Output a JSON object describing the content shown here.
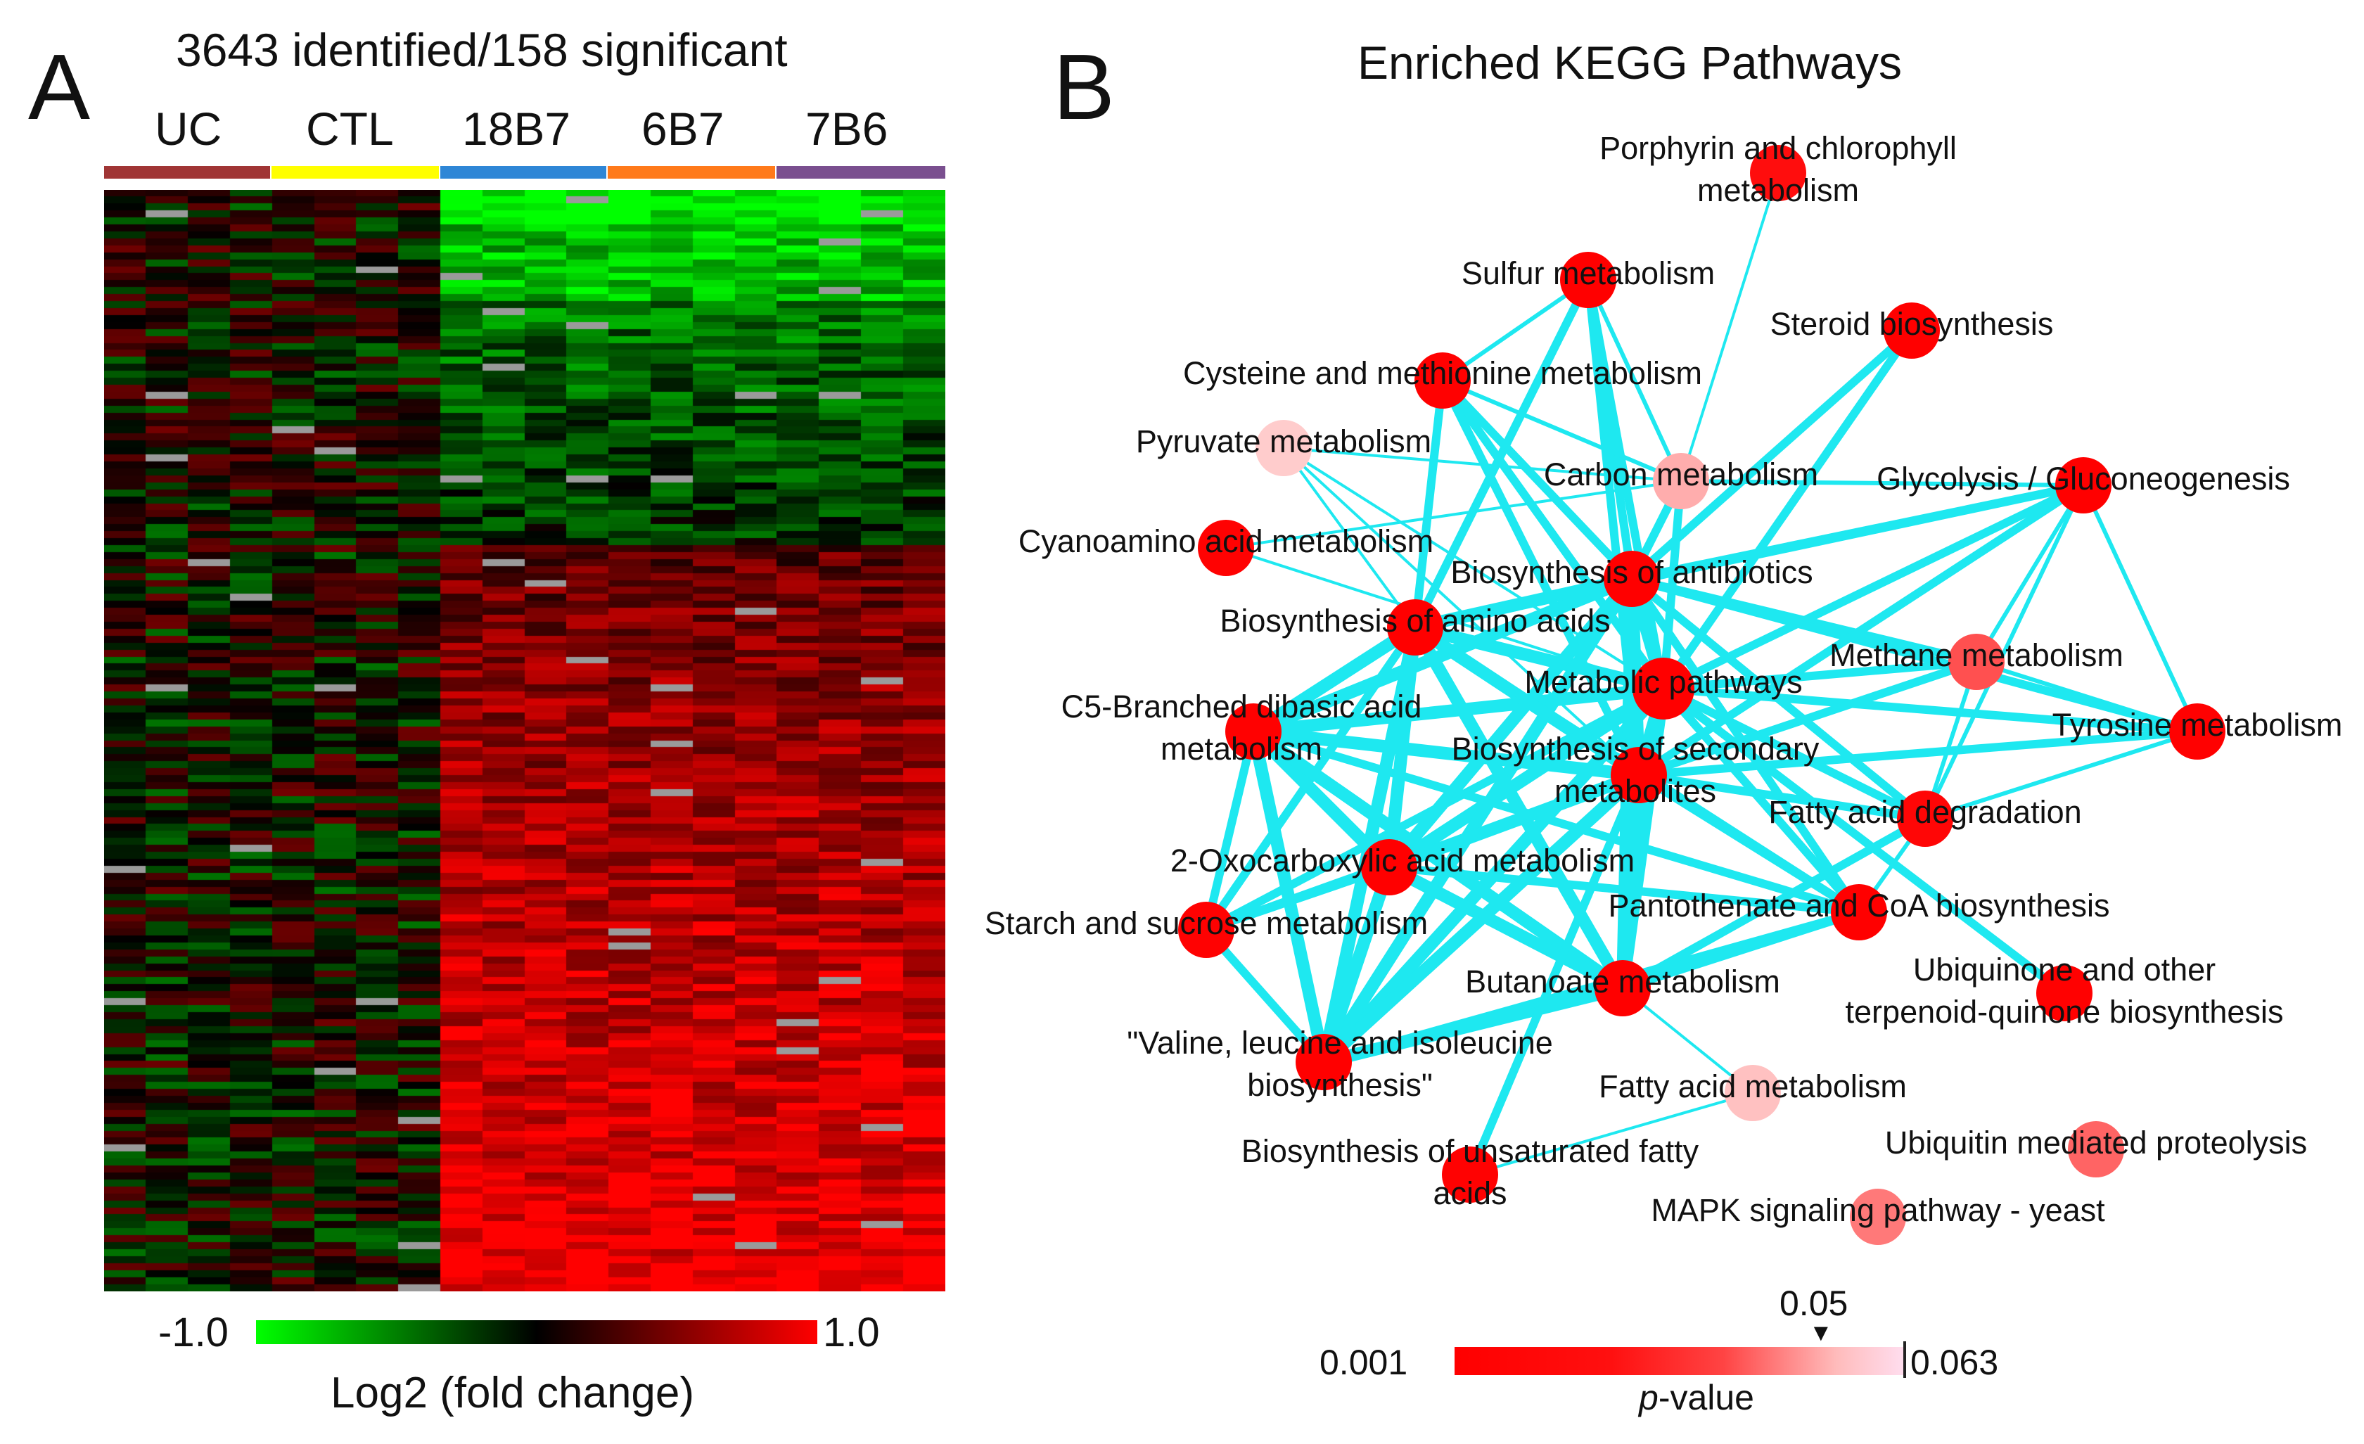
{
  "panel_a": {
    "letter": "A",
    "summary": "3643 identified/158  significant",
    "groups": [
      {
        "label": "UC",
        "color": "#a03535"
      },
      {
        "label": "CTL",
        "color": "#ffff00"
      },
      {
        "label": "18B7",
        "color": "#2e86d6"
      },
      {
        "label": "6B7",
        "color": "#ff7a1a"
      },
      {
        "label": "7B6",
        "color": "#7a4f8f"
      }
    ],
    "colorbar": {
      "min_label": "-1.0",
      "max_label": "1.0",
      "title": "Log2 (fold change)"
    }
  },
  "panel_b": {
    "letter": "B",
    "title": "Enriched  KEGG Pathways",
    "colorbar": {
      "min_label": "0.001",
      "max_label": "0.063",
      "marker_label": "0.05",
      "title_italic": "p",
      "title_rest": "-value"
    },
    "node_color": "#ff0000",
    "edge_color": "#1ee8f0",
    "nodes": [
      {
        "id": "porphyrin",
        "lines": [
          "Porphyrin and chlorophyll",
          "metabolism"
        ],
        "pvalue": 0.012
      },
      {
        "id": "sulfur",
        "lines": [
          "Sulfur metabolism"
        ],
        "pvalue": 0.002
      },
      {
        "id": "steroid",
        "lines": [
          "Steroid biosynthesis"
        ],
        "pvalue": 0.002
      },
      {
        "id": "cysteine",
        "lines": [
          "Cysteine and methionine metabolism"
        ],
        "pvalue": 0.003
      },
      {
        "id": "pyruvate",
        "lines": [
          "Pyruvate metabolism"
        ],
        "pvalue": 0.062
      },
      {
        "id": "carbon",
        "lines": [
          "Carbon metabolism"
        ],
        "pvalue": 0.056
      },
      {
        "id": "glycolysis",
        "lines": [
          "Glycolysis / Gluconeogenesis"
        ],
        "pvalue": 0.002
      },
      {
        "id": "cyanoamino",
        "lines": [
          "Cyanoamino acid metabolism"
        ],
        "pvalue": 0.004
      },
      {
        "id": "antibiotics",
        "lines": [
          "Biosynthesis of antibiotics"
        ],
        "pvalue": 0.001
      },
      {
        "id": "aminoacids",
        "lines": [
          "Biosynthesis of amino acids"
        ],
        "pvalue": 0.002
      },
      {
        "id": "methane",
        "lines": [
          "Methane metabolism"
        ],
        "pvalue": 0.035
      },
      {
        "id": "metabolic",
        "lines": [
          "Metabolic pathways"
        ],
        "pvalue": 0.001
      },
      {
        "id": "c5",
        "lines": [
          "C5-Branched dibasic acid",
          "metabolism"
        ],
        "pvalue": 0.003
      },
      {
        "id": "tyrosine",
        "lines": [
          "Tyrosine metabolism"
        ],
        "pvalue": 0.003
      },
      {
        "id": "secondary",
        "lines": [
          "Biosynthesis of secondary",
          "metabolites"
        ],
        "pvalue": 0.001
      },
      {
        "id": "fattydeg",
        "lines": [
          "Fatty acid degradation"
        ],
        "pvalue": 0.008
      },
      {
        "id": "oxocarb",
        "lines": [
          "2-Oxocarboxylic acid metabolism"
        ],
        "pvalue": 0.002
      },
      {
        "id": "pantothenate",
        "lines": [
          "Pantothenate and CoA biosynthesis"
        ],
        "pvalue": 0.002
      },
      {
        "id": "starch",
        "lines": [
          "Starch and sucrose metabolism"
        ],
        "pvalue": 0.004
      },
      {
        "id": "ubiquinone",
        "lines": [
          "Ubiquinone and other",
          "terpenoid-quinone biosynthesis"
        ],
        "pvalue": 0.003
      },
      {
        "id": "butanoate",
        "lines": [
          "Butanoate metabolism"
        ],
        "pvalue": 0.002
      },
      {
        "id": "valine",
        "lines": [
          "\"Valine, leucine and isoleucine",
          "biosynthesis\""
        ],
        "pvalue": 0.002
      },
      {
        "id": "fattyacid",
        "lines": [
          "Fatty acid metabolism"
        ],
        "pvalue": 0.06
      },
      {
        "id": "ubiquitin",
        "lines": [
          "Ubiquitin mediated proteolysis"
        ],
        "pvalue": 0.04
      },
      {
        "id": "unsaturated",
        "lines": [
          "Biosynthesis of unsaturated fatty",
          "acids"
        ],
        "pvalue": 0.004
      },
      {
        "id": "mapk",
        "lines": [
          "MAPK signaling pathway - yeast"
        ],
        "pvalue": 0.045
      }
    ],
    "edges": [
      [
        "metabolic",
        "antibiotics"
      ],
      [
        "metabolic",
        "aminoacids"
      ],
      [
        "metabolic",
        "secondary"
      ],
      [
        "metabolic",
        "c5"
      ],
      [
        "metabolic",
        "oxocarb"
      ],
      [
        "metabolic",
        "valine"
      ],
      [
        "metabolic",
        "pantothenate"
      ],
      [
        "metabolic",
        "butanoate"
      ],
      [
        "metabolic",
        "glycolysis"
      ],
      [
        "metabolic",
        "methane"
      ],
      [
        "metabolic",
        "fattydeg"
      ],
      [
        "metabolic",
        "tyrosine"
      ],
      [
        "metabolic",
        "sulfur"
      ],
      [
        "metabolic",
        "cysteine"
      ],
      [
        "metabolic",
        "steroid"
      ],
      [
        "metabolic",
        "carbon"
      ],
      [
        "metabolic",
        "starch"
      ],
      [
        "metabolic",
        "cyanoamino"
      ],
      [
        "metabolic",
        "pyruvate"
      ],
      [
        "metabolic",
        "ubiquinone"
      ],
      [
        "antibiotics",
        "aminoacids"
      ],
      [
        "antibiotics",
        "secondary"
      ],
      [
        "antibiotics",
        "glycolysis"
      ],
      [
        "antibiotics",
        "sulfur"
      ],
      [
        "antibiotics",
        "steroid"
      ],
      [
        "antibiotics",
        "c5"
      ],
      [
        "antibiotics",
        "oxocarb"
      ],
      [
        "antibiotics",
        "valine"
      ],
      [
        "antibiotics",
        "methane"
      ],
      [
        "antibiotics",
        "fattydeg"
      ],
      [
        "antibiotics",
        "pantothenate"
      ],
      [
        "antibiotics",
        "butanoate"
      ],
      [
        "antibiotics",
        "cysteine"
      ],
      [
        "antibiotics",
        "carbon"
      ],
      [
        "antibiotics",
        "tyrosine"
      ],
      [
        "aminoacids",
        "secondary"
      ],
      [
        "aminoacids",
        "c5"
      ],
      [
        "aminoacids",
        "oxocarb"
      ],
      [
        "aminoacids",
        "valine"
      ],
      [
        "aminoacids",
        "sulfur"
      ],
      [
        "aminoacids",
        "cysteine"
      ],
      [
        "aminoacids",
        "glycolysis"
      ],
      [
        "aminoacids",
        "butanoate"
      ],
      [
        "aminoacids",
        "pantothenate"
      ],
      [
        "aminoacids",
        "starch"
      ],
      [
        "aminoacids",
        "pyruvate"
      ],
      [
        "secondary",
        "c5"
      ],
      [
        "secondary",
        "oxocarb"
      ],
      [
        "secondary",
        "valine"
      ],
      [
        "secondary",
        "glycolysis"
      ],
      [
        "secondary",
        "fattydeg"
      ],
      [
        "secondary",
        "pantothenate"
      ],
      [
        "secondary",
        "butanoate"
      ],
      [
        "secondary",
        "tyrosine"
      ],
      [
        "secondary",
        "sulfur"
      ],
      [
        "secondary",
        "cysteine"
      ],
      [
        "secondary",
        "methane"
      ],
      [
        "c5",
        "oxocarb"
      ],
      [
        "c5",
        "valine"
      ],
      [
        "c5",
        "butanoate"
      ],
      [
        "c5",
        "starch"
      ],
      [
        "c5",
        "pantothenate"
      ],
      [
        "oxocarb",
        "valine"
      ],
      [
        "oxocarb",
        "butanoate"
      ],
      [
        "oxocarb",
        "starch"
      ],
      [
        "oxocarb",
        "pantothenate"
      ],
      [
        "valine",
        "butanoate"
      ],
      [
        "valine",
        "pantothenate"
      ],
      [
        "valine",
        "starch"
      ],
      [
        "butanoate",
        "pantothenate"
      ],
      [
        "butanoate",
        "fattydeg"
      ],
      [
        "glycolysis",
        "methane"
      ],
      [
        "glycolysis",
        "fattydeg"
      ],
      [
        "glycolysis",
        "tyrosine"
      ],
      [
        "glycolysis",
        "carbon"
      ],
      [
        "methane",
        "fattydeg"
      ],
      [
        "methane",
        "tyrosine"
      ],
      [
        "fattydeg",
        "tyrosine"
      ],
      [
        "sulfur",
        "cysteine"
      ],
      [
        "sulfur",
        "carbon"
      ],
      [
        "cysteine",
        "carbon"
      ],
      [
        "pyruvate",
        "carbon"
      ],
      [
        "pyruvate",
        "secondary"
      ],
      [
        "cyanoamino",
        "carbon"
      ],
      [
        "fattyacid",
        "unsaturated"
      ],
      [
        "fattyacid",
        "butanoate"
      ],
      [
        "unsaturated",
        "secondary"
      ],
      [
        "porphyrin",
        "carbon"
      ],
      [
        "starch",
        "secondary"
      ],
      [
        "fattydeg",
        "pantothenate"
      ]
    ]
  }
}
